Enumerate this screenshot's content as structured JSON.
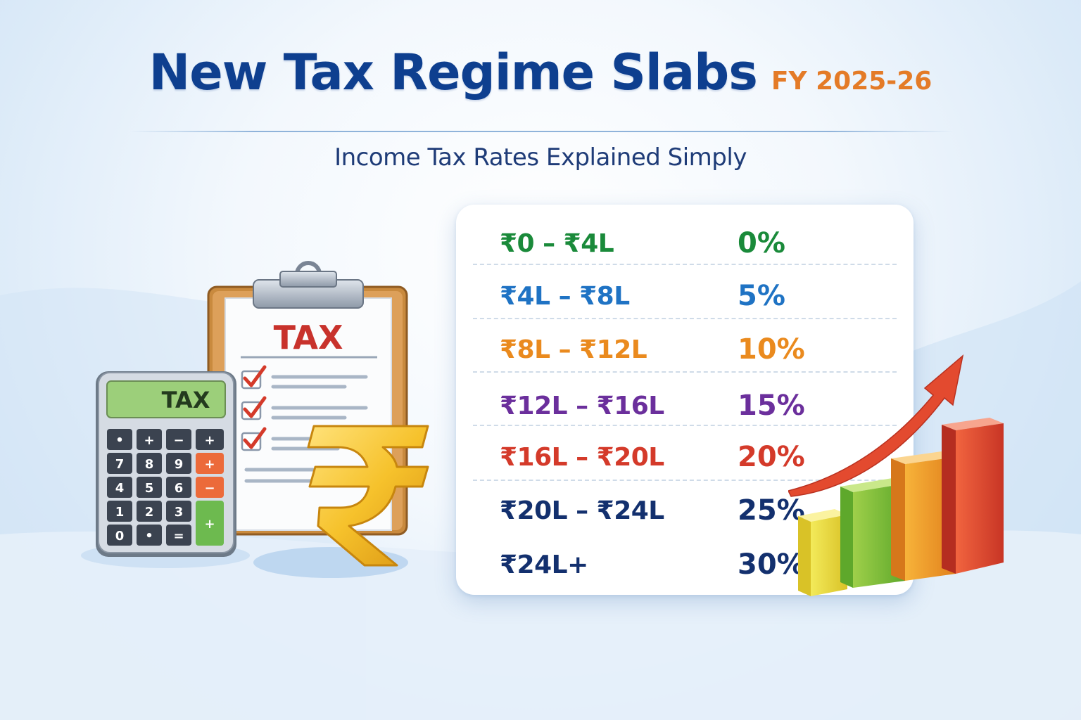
{
  "header": {
    "title": "New Tax Regime Slabs",
    "fy": "FY 2025-26",
    "subtitle": "Income Tax Rates Explained Simply"
  },
  "illustration": {
    "clipboard_label": "TAX",
    "calculator_display": "TAX",
    "calculator_keys": [
      "•",
      "+",
      "−",
      "+",
      "7",
      "8",
      "9",
      "+",
      "4",
      "5",
      "6",
      "−",
      "1",
      "2",
      "3",
      "0",
      "•",
      "=",
      "+"
    ],
    "icons": [
      "clipboard-icon",
      "calculator-icon",
      "rupee-symbol-icon",
      "rising-bar-chart-icon",
      "growth-arrow-icon"
    ]
  },
  "slabs": [
    {
      "range": "₹0 – ₹4L",
      "rate": "0%",
      "color": "#1a8a3a"
    },
    {
      "range": "₹4L – ₹8L",
      "rate": "5%",
      "color": "#1f73c4"
    },
    {
      "range": "₹8L – ₹12L",
      "rate": "10%",
      "color": "#ea8a1e"
    },
    {
      "range": "₹12L – ₹16L",
      "rate": "15%",
      "color": "#6b2f9c"
    },
    {
      "range": "₹16L – ₹20L",
      "rate": "20%",
      "color": "#d43a2a"
    },
    {
      "range": "₹20L – ₹24L",
      "rate": "25%",
      "color": "#13306e"
    },
    {
      "range": "₹24L+",
      "rate": "30%",
      "color": "#13306e"
    }
  ],
  "colors": {
    "title": "#0e3f8f",
    "fy": "#e47b27",
    "subtitle": "#1f3c78"
  }
}
